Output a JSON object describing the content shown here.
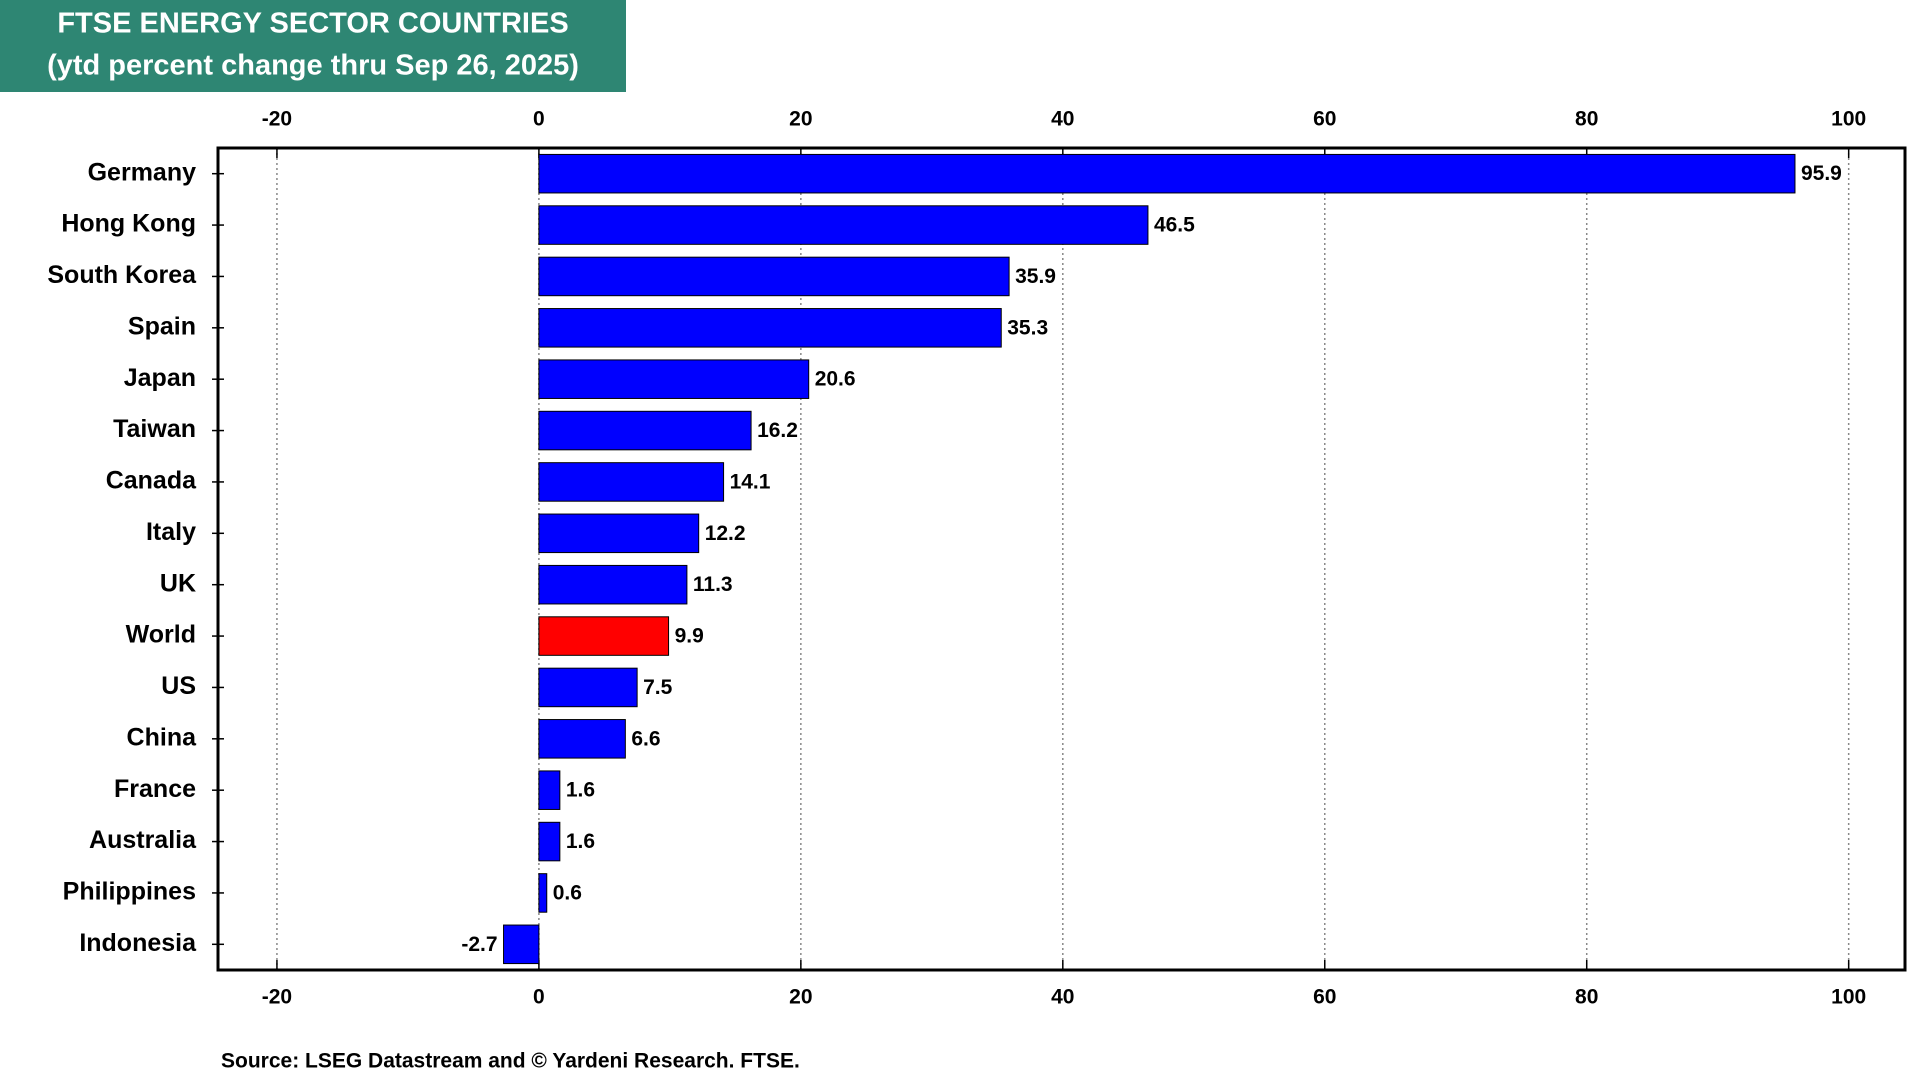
{
  "chart_data": {
    "type": "hbar",
    "title": "FTSE ENERGY SECTOR COUNTRIES",
    "subtitle": "(ytd percent change thru Sep 26, 2025)",
    "source": "Source: LSEG Datastream and © Yardeni Research. FTSE.",
    "categories": [
      "Germany",
      "Hong Kong",
      "South Korea",
      "Spain",
      "Japan",
      "Taiwan",
      "Canada",
      "Italy",
      "UK",
      "World",
      "US",
      "China",
      "France",
      "Australia",
      "Philippines",
      "Indonesia"
    ],
    "values": [
      95.9,
      46.5,
      35.9,
      35.3,
      20.6,
      16.2,
      14.1,
      12.2,
      11.3,
      9.9,
      7.5,
      6.6,
      1.6,
      1.6,
      0.6,
      -2.7
    ],
    "colors": [
      "#0000ff",
      "#0000ff",
      "#0000ff",
      "#0000ff",
      "#0000ff",
      "#0000ff",
      "#0000ff",
      "#0000ff",
      "#0000ff",
      "#ff0000",
      "#0000ff",
      "#0000ff",
      "#0000ff",
      "#0000ff",
      "#0000ff",
      "#0000ff"
    ],
    "xlim": [
      -24.5,
      104.3
    ],
    "xticks": [
      -20,
      0,
      20,
      40,
      60,
      80,
      100
    ],
    "grid": true
  }
}
